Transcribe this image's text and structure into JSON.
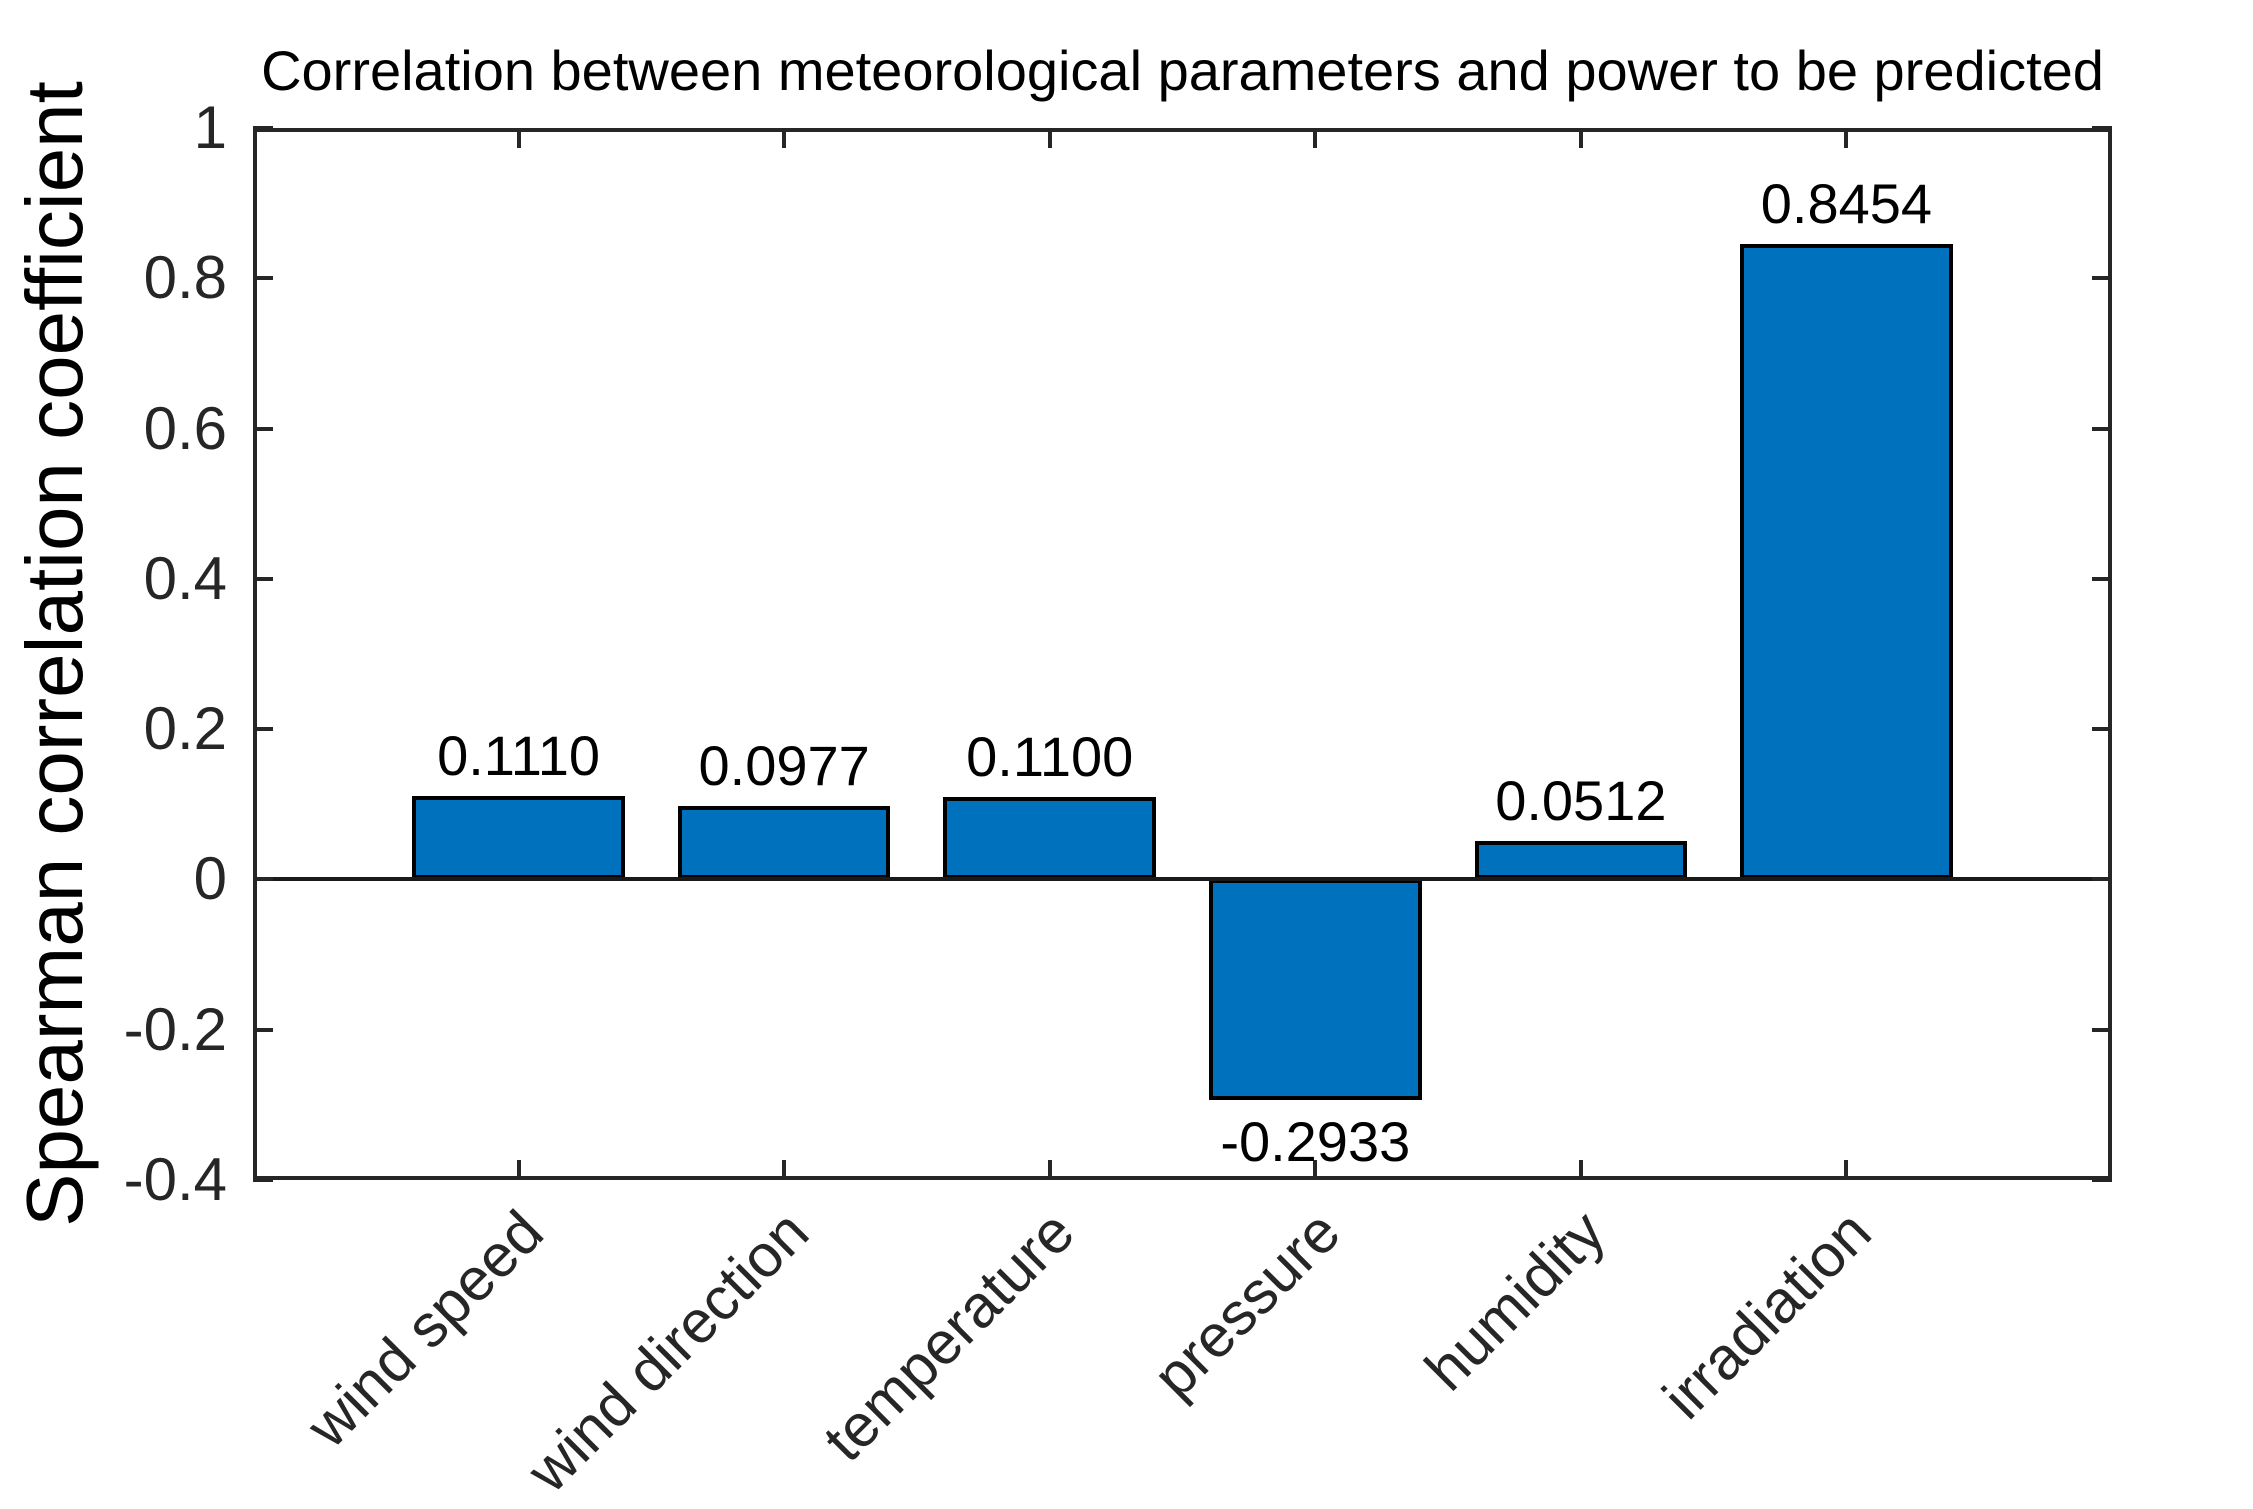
{
  "figure": {
    "title": "Correlation between meteorological parameters and power to be predicted",
    "ylabel": "Spearman correlation coefficient"
  },
  "chart_data": {
    "type": "bar",
    "title": "Correlation between meteorological parameters and power to be predicted",
    "xlabel": "",
    "ylabel": "Spearman correlation coefficient",
    "categories": [
      "wind speed",
      "wind direction",
      "temperature",
      "pressure",
      "humidity",
      "irradiation"
    ],
    "values": [
      0.111,
      0.0977,
      0.11,
      -0.2933,
      0.0512,
      0.8454
    ],
    "value_labels": [
      "0.1110",
      "0.0977",
      "0.1100",
      "-0.2933",
      "0.0512",
      "0.8454"
    ],
    "ylim": [
      -0.4,
      1
    ],
    "yticks": [
      -0.4,
      -0.2,
      0,
      0.2,
      0.4,
      0.6,
      0.8,
      1
    ],
    "ytick_labels": [
      "-0.4",
      "-0.2",
      "0",
      "0.2",
      "0.4",
      "0.6",
      "0.8",
      "1"
    ],
    "x_range": [
      0,
      7
    ],
    "x_positions": [
      1,
      2,
      3,
      4,
      5,
      6
    ],
    "bar_width_units": 0.8,
    "xtick_rotation_deg": 45,
    "grid": false,
    "legend": null,
    "box": true,
    "tick_direction": "in",
    "bar_color": "#0072BD",
    "bar_edge_color": "#000000",
    "axis_color": "#262626",
    "baseline_color": "#1a1a1a"
  }
}
